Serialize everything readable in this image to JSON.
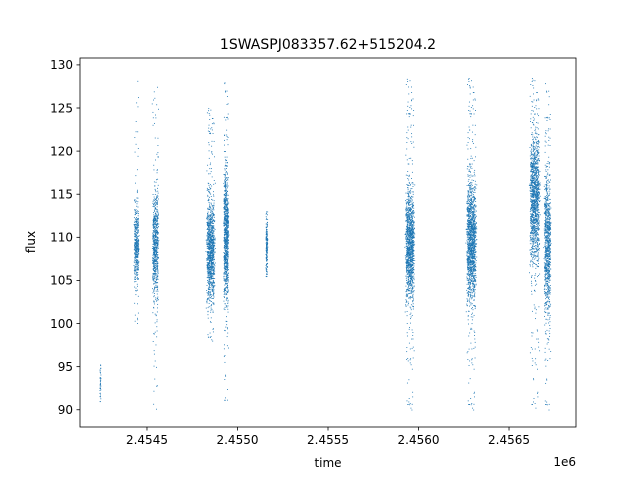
{
  "chart_data": {
    "type": "scatter",
    "title": "1SWASPJ083357.62+515204.2",
    "xlabel": "time",
    "ylabel": "flux",
    "x_offset_label": "1e6",
    "xlim": [
      2454130,
      2456870
    ],
    "ylim": [
      88.0,
      130.8
    ],
    "x_ticks": [
      2454500,
      2455000,
      2455500,
      2456000,
      2456500
    ],
    "x_tick_labels": [
      "2.4545",
      "2.4550",
      "2.4555",
      "2.4560",
      "2.4565"
    ],
    "y_ticks": [
      90,
      95,
      100,
      105,
      110,
      115,
      120,
      125,
      130
    ],
    "y_tick_labels": [
      "90",
      "95",
      "100",
      "105",
      "110",
      "115",
      "120",
      "125",
      "130"
    ],
    "grid": false,
    "marker_color": "#1f77b4",
    "series": [
      {
        "clusters": [
          {
            "x_center": 2454240,
            "x_width": 6,
            "y_center": 93.0,
            "y_spread": 1.2,
            "y_min": 91.0,
            "y_max": 95.5,
            "count": 40
          },
          {
            "x_center": 2454440,
            "x_width": 22,
            "y_center": 109.0,
            "y_spread": 2.2,
            "y_min": 100.0,
            "y_max": 128.5,
            "count": 420
          },
          {
            "x_center": 2454545,
            "x_width": 28,
            "y_center": 109.0,
            "y_spread": 3.0,
            "y_min": 90.0,
            "y_max": 128.0,
            "count": 700
          },
          {
            "x_center": 2454850,
            "x_width": 38,
            "y_center": 108.5,
            "y_spread": 2.8,
            "y_min": 98.0,
            "y_max": 125.0,
            "count": 1100
          },
          {
            "x_center": 2454935,
            "x_width": 22,
            "y_center": 110.0,
            "y_spread": 3.8,
            "y_min": 90.5,
            "y_max": 128.0,
            "count": 900
          },
          {
            "x_center": 2455160,
            "x_width": 8,
            "y_center": 109.0,
            "y_spread": 1.5,
            "y_min": 105.5,
            "y_max": 113.0,
            "count": 180
          },
          {
            "x_center": 2455950,
            "x_width": 40,
            "y_center": 109.0,
            "y_spread": 3.2,
            "y_min": 90.0,
            "y_max": 128.5,
            "count": 1300
          },
          {
            "x_center": 2456290,
            "x_width": 44,
            "y_center": 109.5,
            "y_spread": 3.4,
            "y_min": 90.0,
            "y_max": 128.5,
            "count": 1500
          },
          {
            "x_center": 2456640,
            "x_width": 45,
            "y_center": 114.5,
            "y_spread": 3.6,
            "y_min": 90.0,
            "y_max": 128.5,
            "count": 1300
          },
          {
            "x_center": 2456710,
            "x_width": 30,
            "y_center": 109.0,
            "y_spread": 4.2,
            "y_min": 90.0,
            "y_max": 128.0,
            "count": 900
          }
        ]
      }
    ]
  }
}
